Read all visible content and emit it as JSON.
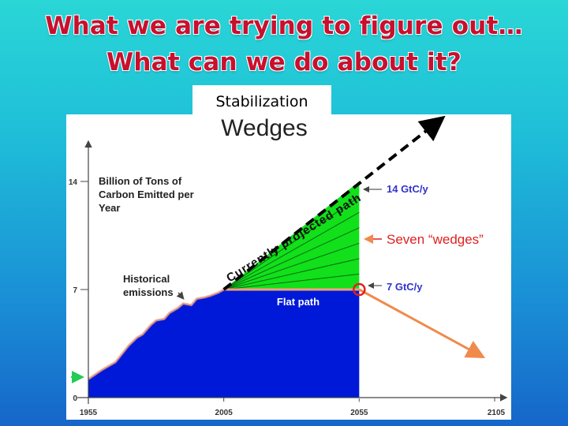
{
  "slide": {
    "title_line1": "What we are trying to figure out…",
    "title_line2": "What can we do about it?",
    "label": "Stabilization"
  },
  "chart_data": {
    "type": "area",
    "title": "Wedges",
    "ylabel": "Billion of Tons of Carbon Emitted per Year",
    "ylabel_lines": [
      "Billion of Tons of",
      "Carbon Emitted per",
      "Year"
    ],
    "x_ticks": [
      1955,
      2005,
      2055,
      2105
    ],
    "y_ticks": [
      0,
      7,
      14
    ],
    "xlim": [
      1955,
      2105
    ],
    "ylim": [
      0,
      14
    ],
    "historical": {
      "name_lines": [
        "Historical",
        "emissions"
      ],
      "x": [
        1955,
        1960,
        1965,
        1970,
        1973,
        1975,
        1978,
        1980,
        1983,
        1985,
        1988,
        1990,
        1993,
        1995,
        1998,
        2000,
        2003,
        2005
      ],
      "y": [
        1.2,
        1.8,
        2.3,
        3.4,
        3.9,
        4.1,
        4.7,
        5.0,
        5.1,
        5.5,
        5.8,
        6.1,
        6.0,
        6.4,
        6.5,
        6.6,
        6.8,
        7.0
      ]
    },
    "projected_path": {
      "label": "Currently projected path",
      "x": [
        2005,
        2055,
        2085
      ],
      "y": [
        7,
        14,
        18
      ]
    },
    "flat_path": {
      "label": "Flat path",
      "value": 7,
      "x": [
        2005,
        2055
      ]
    },
    "wedges": {
      "label": "Seven “wedges”",
      "count": 7,
      "x": [
        2005,
        2055
      ],
      "y_bottom": 7,
      "y_top": 14
    },
    "declining_path": {
      "x": [
        2055,
        2100
      ],
      "y": [
        7,
        2.7
      ]
    },
    "annotations": [
      {
        "text": "14 GtC/y",
        "value": 14
      },
      {
        "text": "7 GtC/y",
        "value": 7
      }
    ],
    "colors": {
      "historical_fill": "#0019d9",
      "wedge_fill": "#11e01a",
      "wedge_lines": "#0a6a14",
      "flat_line": "#f4a07a",
      "declining_line": "#f08a4b",
      "label_blue": "#3333cc",
      "label_red": "#e02020",
      "marker": "#e02020",
      "arrow_green": "#22cc55"
    }
  }
}
